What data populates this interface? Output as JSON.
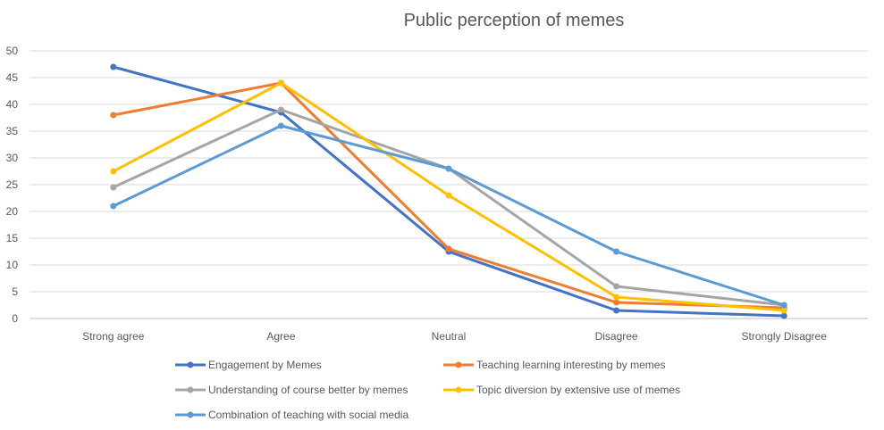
{
  "chart_data": {
    "type": "line",
    "title": "Public perception of memes",
    "xlabel": "",
    "ylabel": "",
    "categories": [
      "Strong agree",
      "Agree",
      "Neutral",
      "Disagree",
      "Strongly Disagree"
    ],
    "ylim": [
      0,
      50
    ],
    "yticks": [
      0,
      5,
      10,
      15,
      20,
      25,
      30,
      35,
      40,
      45,
      50
    ],
    "grid": true,
    "legend_position": "bottom",
    "series": [
      {
        "name": "Engagement by Memes",
        "color": "#4472C4",
        "values": [
          47,
          38.5,
          12.5,
          1.5,
          0.5
        ]
      },
      {
        "name": "Teaching learning interesting by memes",
        "color": "#ED7D31",
        "values": [
          38,
          44,
          13,
          3,
          2
        ]
      },
      {
        "name": "Understanding of course better by memes",
        "color": "#A5A5A5",
        "values": [
          24.5,
          39,
          28,
          6,
          2.5
        ]
      },
      {
        "name": "Topic diversion by extensive use of memes",
        "color": "#FFC000",
        "values": [
          27.5,
          44,
          23,
          4,
          1.5
        ]
      },
      {
        "name": "Combination of teaching with social media",
        "color": "#5B9BD5",
        "values": [
          21,
          36,
          28,
          12.5,
          2.5
        ]
      }
    ]
  }
}
